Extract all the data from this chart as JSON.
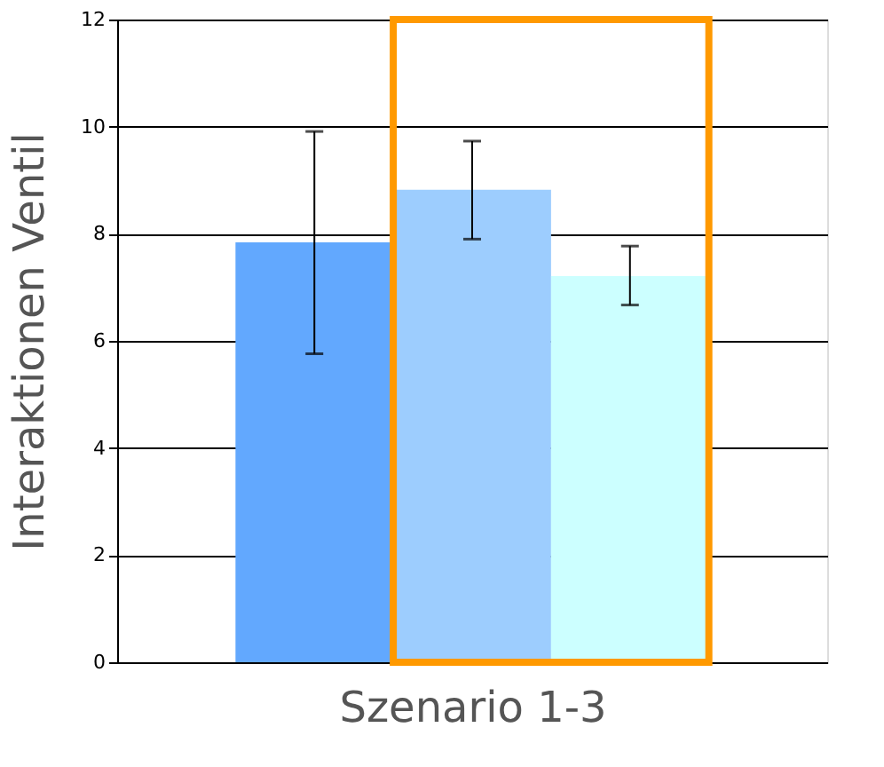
{
  "chart_data": {
    "type": "bar",
    "xlabel": "Szenario 1-3",
    "ylabel": "Interaktionen Ventil",
    "categories": [
      null,
      null,
      null
    ],
    "values": [
      7.84,
      8.82,
      7.21
    ],
    "colors": [
      "#62a8fe",
      "#9dcdfe",
      "#ccffff"
    ],
    "errors": [
      [
        5.76,
        9.91
      ],
      [
        7.9,
        9.73
      ],
      [
        6.67,
        7.77
      ]
    ],
    "ylim": [
      0,
      12
    ],
    "yticks": [
      0,
      2,
      4,
      6,
      8,
      10,
      12
    ],
    "grid": "y"
  }
}
